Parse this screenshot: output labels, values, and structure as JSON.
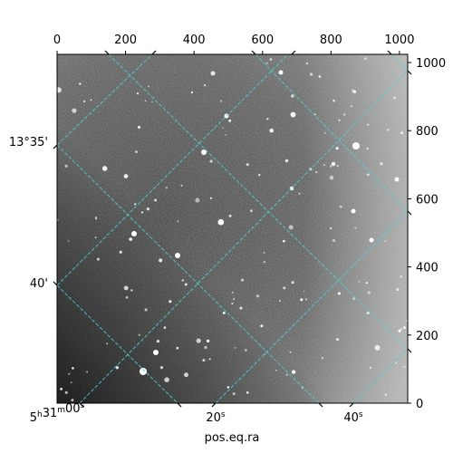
{
  "chart_data": {
    "type": "image",
    "xlabel": "pos.eq.ra",
    "pixel_axes": {
      "x_range": [
        0,
        1024
      ],
      "y_range": [
        0,
        1024
      ],
      "top_ticks": [
        0,
        200,
        400,
        600,
        800,
        1000
      ],
      "right_ticks": [
        0,
        200,
        400,
        600,
        800,
        1000
      ]
    },
    "ra_ticks": [
      {
        "label_main": "5",
        "label_h": "h",
        "label_mid": "31",
        "label_m": "m",
        "label_tail": "00",
        "label_s": "s",
        "value": "5h31m00s"
      },
      {
        "label_main": "20",
        "label_s": "s",
        "value": "5h31m20s"
      },
      {
        "label_main": "40",
        "label_s": "s",
        "value": "5h31m40s"
      }
    ],
    "dec_ticks": [
      {
        "label": "13°35'",
        "value": "13°35'"
      },
      {
        "label": "40'",
        "value": "13°40'"
      }
    ],
    "grid": true,
    "grid_color": "#40d8d8",
    "image_colormap": "gray"
  }
}
